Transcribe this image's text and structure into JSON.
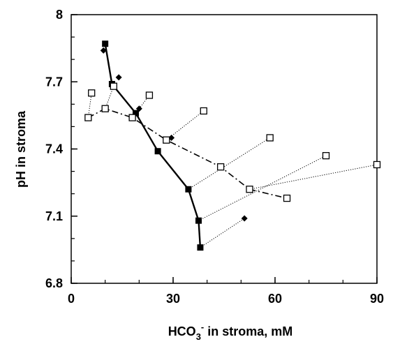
{
  "chart_data": {
    "type": "scatter",
    "title": "",
    "xlabel": {
      "base": "HCO",
      "sub": "3",
      "sup": "-",
      "rest": " in stroma, mM"
    },
    "ylabel": "pH in stroma",
    "xlim": [
      0,
      90
    ],
    "ylim": [
      6.8,
      8.0
    ],
    "x_ticks": [
      0,
      30,
      60,
      90
    ],
    "x_tick_labels": [
      "0",
      "30",
      "60",
      "90"
    ],
    "y_ticks": [
      6.8,
      7.1,
      7.4,
      7.7,
      8.0
    ],
    "y_tick_labels": [
      "6.8",
      "7.1",
      "7.4",
      "7.7",
      "8"
    ],
    "x_minor_step": 10,
    "y_minor_step": 0.1,
    "grid": false,
    "legend": "none",
    "series": [
      {
        "marker": "filled-square",
        "line": "solid",
        "color": "#000000",
        "points": [
          [
            10,
            7.87
          ],
          [
            12,
            7.69
          ],
          [
            19,
            7.56
          ],
          [
            25.5,
            7.39
          ],
          [
            34.5,
            7.22
          ],
          [
            37.5,
            7.08
          ],
          [
            38,
            6.96
          ]
        ]
      },
      {
        "marker": "filled-diamond",
        "line": "none",
        "color": "#000000",
        "points": [
          [
            9.5,
            7.84
          ],
          [
            14,
            7.72
          ],
          [
            20,
            7.58
          ],
          [
            29.5,
            7.45
          ],
          [
            51,
            7.09
          ]
        ]
      },
      {
        "marker": "open-square",
        "line": "dash-dot",
        "color": "#000000",
        "points": [
          [
            5,
            7.54
          ],
          [
            10,
            7.58
          ],
          [
            18,
            7.54
          ],
          [
            28,
            7.44
          ],
          [
            44,
            7.32
          ],
          [
            52.5,
            7.22
          ],
          [
            63.5,
            7.18
          ]
        ]
      },
      {
        "marker": "open-square",
        "line": "none",
        "color": "#000000",
        "points": [
          [
            6,
            7.65
          ],
          [
            12.5,
            7.68
          ],
          [
            23,
            7.64
          ],
          [
            39,
            7.57
          ],
          [
            58.5,
            7.45
          ],
          [
            75,
            7.37
          ],
          [
            90,
            7.33
          ]
        ]
      }
    ],
    "connectors": [
      [
        [
          5,
          7.54
        ],
        [
          6,
          7.65
        ]
      ],
      [
        [
          10,
          7.58
        ],
        [
          12.5,
          7.68
        ]
      ],
      [
        [
          18,
          7.54
        ],
        [
          23,
          7.64
        ]
      ],
      [
        [
          28,
          7.44
        ],
        [
          39,
          7.57
        ]
      ],
      [
        [
          34.5,
          7.22
        ],
        [
          58.5,
          7.45
        ]
      ],
      [
        [
          37.5,
          7.08
        ],
        [
          75,
          7.37
        ]
      ],
      [
        [
          38,
          6.96
        ],
        [
          51,
          7.09
        ]
      ],
      [
        [
          52.5,
          7.22
        ],
        [
          90,
          7.33
        ]
      ]
    ]
  }
}
